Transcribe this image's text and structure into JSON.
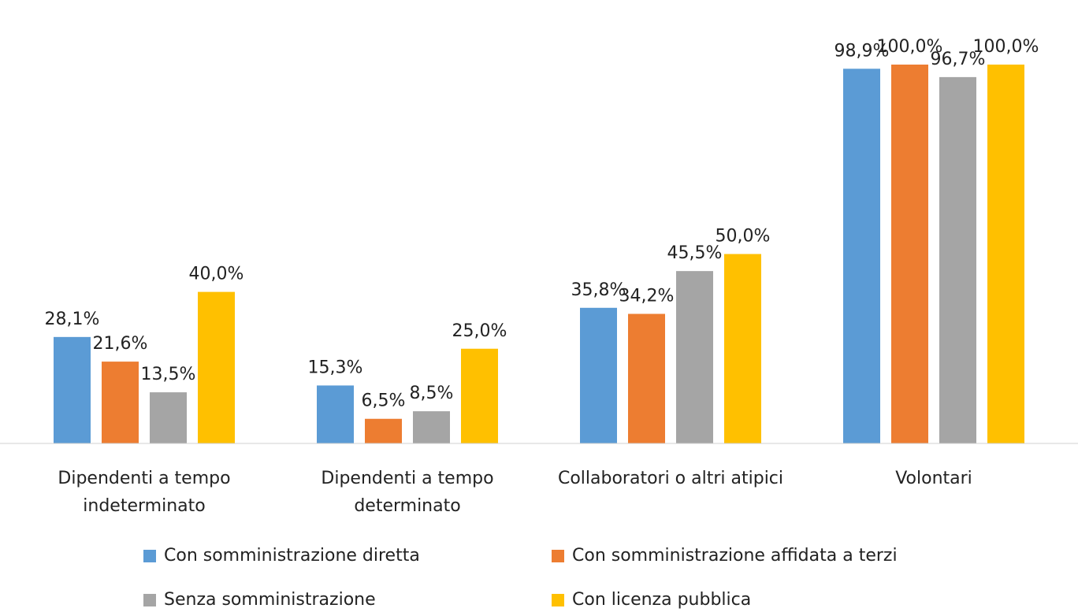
{
  "chart_data": {
    "type": "bar",
    "categories": [
      "Dipendenti a tempo indeterminato",
      "Dipendenti a tempo determinato",
      "Collaboratori o altri atipici",
      "Volontari"
    ],
    "series": [
      {
        "name": "Con somministrazione diretta",
        "color": "#5b9bd5",
        "values": [
          28.1,
          15.3,
          35.8,
          98.9
        ],
        "value_labels": [
          "28,1%",
          "15,3%",
          "35,8%",
          "98,9%"
        ]
      },
      {
        "name": "Con somministrazione affidata a terzi",
        "color": "#ed7d31",
        "values": [
          21.6,
          6.5,
          34.2,
          100.0
        ],
        "value_labels": [
          "21,6%",
          "6,5%",
          "34,2%",
          "100,0%"
        ]
      },
      {
        "name": "Senza somministrazione",
        "color": "#a5a5a5",
        "values": [
          13.5,
          8.5,
          45.5,
          96.7
        ],
        "value_labels": [
          "13,5%",
          "8,5%",
          "45,5%",
          "96,7%"
        ]
      },
      {
        "name": "Con licenza pubblica",
        "color": "#ffc000",
        "values": [
          40.0,
          25.0,
          50.0,
          100.0
        ],
        "value_labels": [
          "40,0%",
          "25,0%",
          "50,0%",
          "100,0%"
        ]
      }
    ],
    "ylim": [
      0,
      100
    ],
    "grid": false,
    "legend": "bottom"
  }
}
